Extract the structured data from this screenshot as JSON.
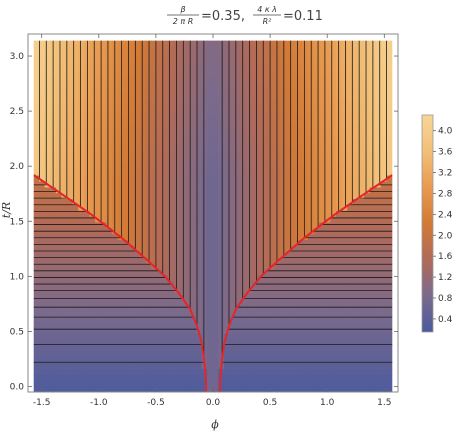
{
  "chart_data": {
    "type": "heatmap",
    "title": {
      "frac1_num": "β",
      "frac1_den": "2 π R",
      "val1": "=0.35,",
      "frac2_num": "4 κ λ",
      "frac2_den": "R²",
      "val2": "=0.11"
    },
    "xlabel": "ϕ",
    "ylabel": "t/R",
    "xlim": [
      -1.62,
      1.62
    ],
    "ylim": [
      -0.05,
      3.2
    ],
    "x_ticks": [
      -1.5,
      -1.0,
      -0.5,
      0.0,
      0.5,
      1.0,
      1.5
    ],
    "x_tick_labels": [
      "-1.5",
      "-1.0",
      "-0.5",
      "0.0",
      "0.5",
      "1.0",
      "1.5"
    ],
    "y_ticks": [
      0.0,
      0.5,
      1.0,
      1.5,
      2.0,
      2.5,
      3.0
    ],
    "y_tick_labels": [
      "0.0",
      "0.5",
      "1.0",
      "1.5",
      "2.0",
      "2.5",
      "3.0"
    ],
    "domain_x": [
      -1.57,
      1.57
    ],
    "domain_y": [
      -0.05,
      3.14
    ],
    "colorbar": {
      "min": 0.15,
      "max": 4.3,
      "ticks": [
        0.4,
        0.8,
        1.2,
        1.6,
        2.0,
        2.4,
        2.8,
        3.2,
        3.6,
        4.0
      ],
      "tick_labels": [
        "0.4",
        "0.8",
        "1.2",
        "1.6",
        "2.0",
        "2.4",
        "2.8",
        "3.2",
        "3.6",
        "4.0"
      ],
      "colors": [
        "#4a5a9e",
        "#7a6a8c",
        "#b06a5a",
        "#d27a36",
        "#e89a50",
        "#f2c078",
        "#f7d698"
      ]
    },
    "horizontal_contours_t": [
      0.22,
      0.38,
      0.52,
      0.63,
      0.72,
      0.8,
      0.87,
      0.93,
      0.99,
      1.05,
      1.11,
      1.17,
      1.23,
      1.29,
      1.35,
      1.41,
      1.47,
      1.53,
      1.59,
      1.65,
      1.71,
      1.77,
      1.83
    ],
    "vertical_contours_phi": [
      0.08,
      0.14,
      0.2,
      0.26,
      0.32,
      0.38,
      0.44,
      0.5,
      0.56,
      0.62,
      0.68,
      0.74,
      0.8,
      0.86,
      0.92,
      0.98,
      1.04,
      1.1,
      1.16,
      1.22,
      1.28,
      1.34,
      1.4,
      1.46,
      1.52
    ],
    "boundary_curve": {
      "color": "#e8232a",
      "phi0": 0.06,
      "points": [
        [
          0.06,
          -0.05
        ],
        [
          0.065,
          0.1
        ],
        [
          0.08,
          0.25
        ],
        [
          0.1,
          0.4
        ],
        [
          0.14,
          0.55
        ],
        [
          0.2,
          0.7
        ],
        [
          0.3,
          0.85
        ],
        [
          0.42,
          1.0
        ],
        [
          0.58,
          1.15
        ],
        [
          0.8,
          1.35
        ],
        [
          1.05,
          1.55
        ],
        [
          1.3,
          1.73
        ],
        [
          1.57,
          1.92
        ]
      ]
    }
  }
}
